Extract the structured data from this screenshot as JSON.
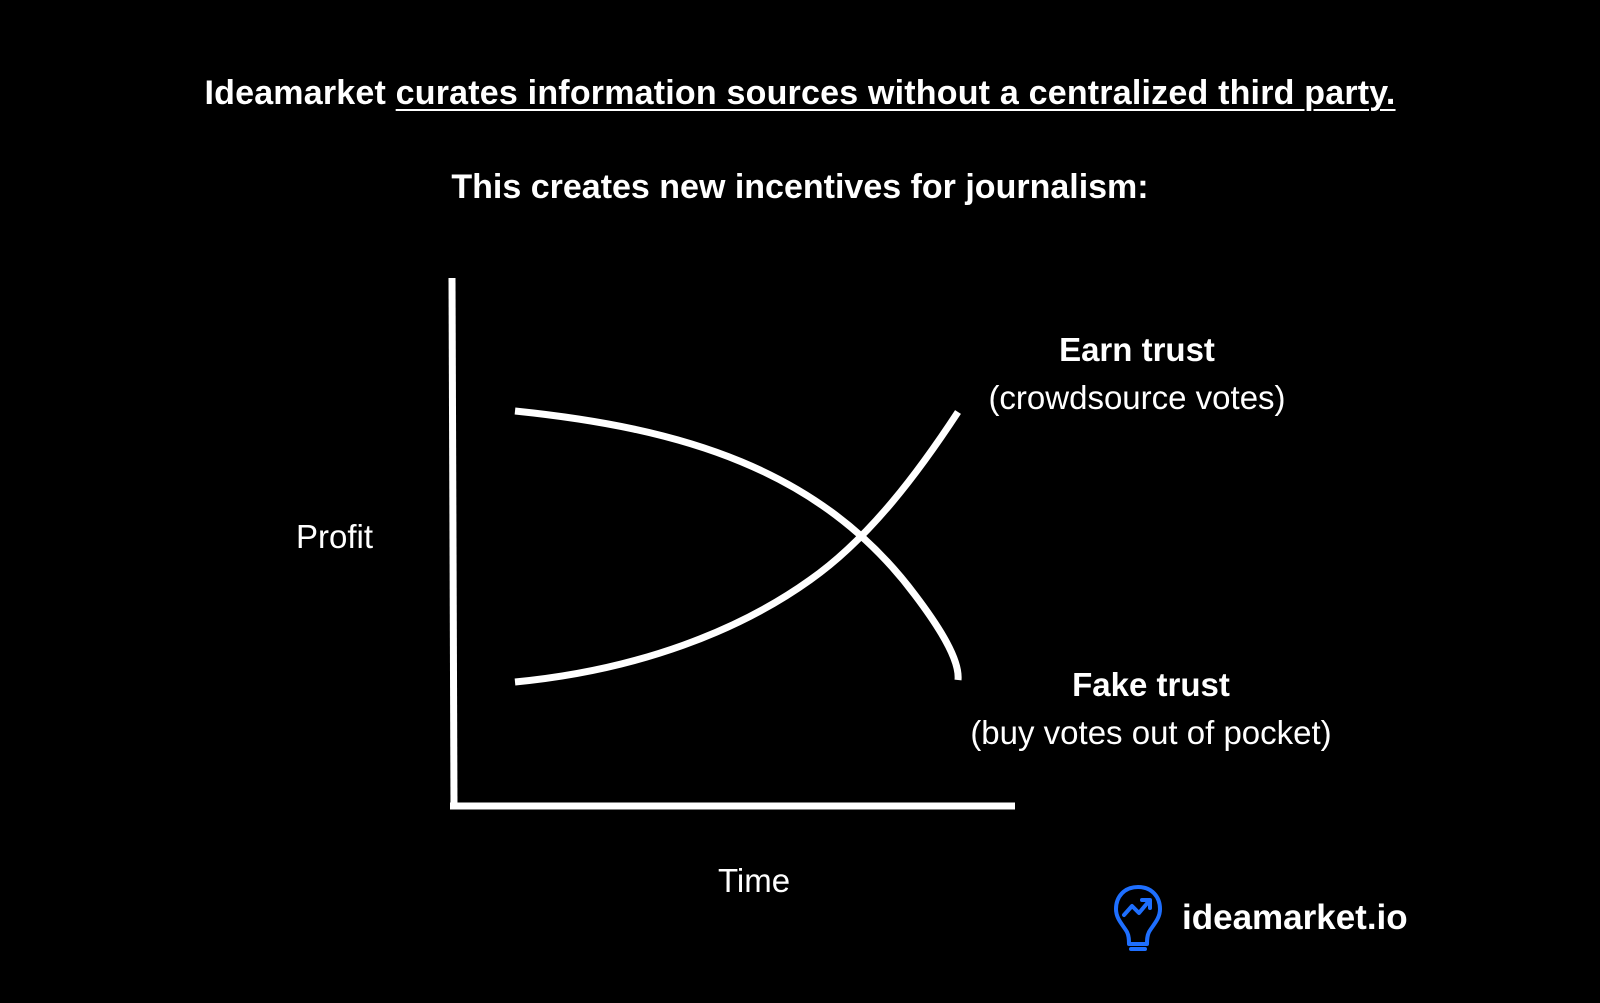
{
  "header": {
    "brand_word": "Ideamarket",
    "headline_rest": "curates information sources without a centralized third party.",
    "subhead": "This creates new incentives for journalism:"
  },
  "diagram": {
    "y_axis_label": "Profit",
    "x_axis_label": "Time",
    "curves": [
      {
        "name": "Earn trust",
        "note": "(crowdsource votes)",
        "trend": "rising"
      },
      {
        "name": "Fake trust",
        "note": "(buy votes out of pocket)",
        "trend": "falling"
      }
    ]
  },
  "footer": {
    "logo_icon": "lightbulb-trend-icon",
    "site": "ideamarket.io",
    "accent_color": "#1e6fff"
  },
  "colors": {
    "background": "#000000",
    "foreground": "#ffffff"
  }
}
